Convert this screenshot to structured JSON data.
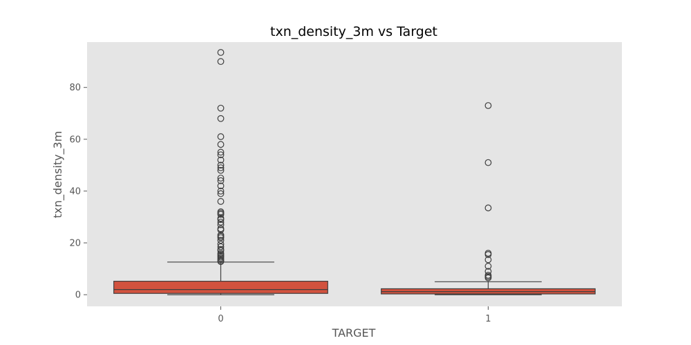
{
  "chart_data": {
    "type": "box",
    "title": "txn_density_3m vs Target",
    "xlabel": "TARGET",
    "ylabel": "txn_density_3m",
    "categories": [
      "0",
      "1"
    ],
    "y_ticks": [
      0,
      20,
      40,
      60,
      80
    ],
    "ylim": [
      -4.5,
      97.5
    ],
    "grid": false,
    "colors": {
      "plot_background": "#e5e5e5",
      "box_fill": "#d2523e",
      "box_stroke": "#3f3f3f"
    },
    "boxes": [
      {
        "category": "0",
        "whisker_low": 0,
        "q1": 0.5,
        "median": 2.0,
        "q3": 5.2,
        "whisker_high": 12.6,
        "outliers": [
          93.5,
          90,
          72,
          68,
          61,
          58,
          55,
          54,
          52,
          50,
          49,
          48,
          45,
          44,
          42,
          40,
          39,
          36,
          32,
          31.5,
          31,
          29.5,
          29,
          28,
          27,
          25.5,
          25,
          23,
          22.5,
          22,
          21,
          19.5,
          18.5,
          17.5,
          17,
          16,
          15.5,
          15,
          14.5,
          14,
          13.5,
          13,
          12.8
        ]
      },
      {
        "category": "1",
        "whisker_low": 0,
        "q1": 0.3,
        "median": 1.2,
        "q3": 2.3,
        "whisker_high": 5.0,
        "outliers": [
          73,
          51,
          33.5,
          16,
          15.5,
          13.5,
          11,
          9,
          7.5,
          7,
          6.5
        ]
      }
    ]
  }
}
